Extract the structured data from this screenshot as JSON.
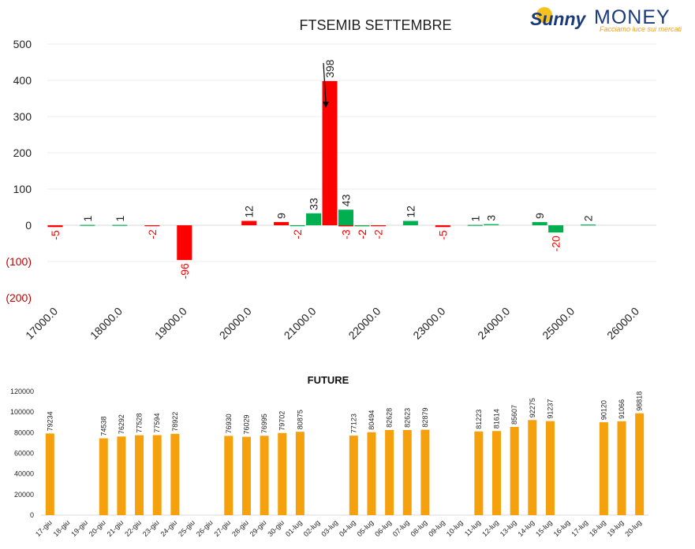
{
  "logo": {
    "word1": "Sunny",
    "word2": "MONEY",
    "tagline": "Facciamo luce sui mercati"
  },
  "colors": {
    "positive": "#00b050",
    "negative": "#ff0000",
    "future_bar": "#f5a00d",
    "logo_blue": "#1b3a7a",
    "logo_orange": "#f39c12",
    "grid": "#eeeeee",
    "negative_tick": "#c00000"
  },
  "chart_data": [
    {
      "type": "bar",
      "title": "FTSEMIB SETTEMBRE",
      "xlabel": "",
      "ylabel": "",
      "ylim": [
        -200,
        500
      ],
      "y_ticks": [
        "500",
        "400",
        "300",
        "200",
        "100",
        "0",
        "(100)",
        "(200)"
      ],
      "x_tick_labels": [
        "17000.0",
        "18000.0",
        "19000.0",
        "20000.0",
        "21000.0",
        "22000.0",
        "23000.0",
        "24000.0",
        "25000.0",
        "26000.0"
      ],
      "x": [
        17000,
        17250,
        17500,
        17750,
        18000,
        18250,
        18500,
        18750,
        19000,
        19250,
        19500,
        19750,
        20000,
        20250,
        20500,
        20750,
        21000,
        21250,
        21500,
        21750,
        22000,
        22250,
        22500,
        22750,
        23000,
        23250,
        23500,
        23750,
        24000,
        24250,
        24500,
        24750,
        25000,
        25250,
        25500,
        25750,
        26000
      ],
      "series": [
        {
          "name": "",
          "color": "negative",
          "x": [
            17000,
            18500,
            19000,
            20000,
            20500,
            21250,
            21500,
            21750,
            22000,
            23000
          ],
          "values": [
            -5,
            -2,
            -96,
            12,
            9,
            398,
            -3,
            -2,
            -2,
            -5
          ],
          "labels": [
            "-5",
            "-2",
            "-96",
            "12",
            "9",
            "398",
            "-3",
            "-2",
            "-2",
            "-5"
          ]
        },
        {
          "name": "",
          "color": "positive",
          "x": [
            17500,
            18000,
            20750,
            21000,
            21500,
            21750,
            22500,
            23500,
            23750,
            24500,
            24750,
            25250
          ],
          "values": [
            1,
            1,
            -2,
            33,
            43,
            -2,
            12,
            1,
            3,
            9,
            -20,
            2
          ],
          "labels": [
            "1",
            "1",
            "-2",
            "33",
            "43",
            "-2",
            "12",
            "1",
            "3",
            "9",
            "-20",
            "2"
          ]
        }
      ],
      "annotation": "arrow pointing down next to the 21250 bar"
    },
    {
      "type": "bar",
      "title": "FUTURE",
      "xlabel": "",
      "ylabel": "",
      "ylim": [
        0,
        120000
      ],
      "y_ticks": [
        "120000",
        "100000",
        "80000",
        "60000",
        "40000",
        "20000",
        "0"
      ],
      "categories": [
        "17-giu",
        "18-giu",
        "19-giu",
        "20-giu",
        "21-giu",
        "22-giu",
        "23-giu",
        "24-giu",
        "25-giu",
        "26-giu",
        "27-giu",
        "28-giu",
        "29-giu",
        "30-giu",
        "01-lug",
        "02-lug",
        "03-lug",
        "04-lug",
        "05-lug",
        "06-lug",
        "07-lug",
        "08-lug",
        "09-lug",
        "10-lug",
        "11-lug",
        "12-lug",
        "13-lug",
        "14-lug",
        "15-lug",
        "16-lug",
        "17-lug",
        "18-lug",
        "19-lug",
        "20-lug"
      ],
      "values": [
        79234,
        null,
        null,
        74538,
        76292,
        77528,
        77594,
        78922,
        null,
        null,
        76930,
        76029,
        76995,
        79702,
        80875,
        null,
        null,
        77123,
        80494,
        82628,
        82623,
        82879,
        null,
        null,
        81223,
        81614,
        85607,
        92275,
        91237,
        null,
        null,
        90120,
        91066,
        98818
      ],
      "labels": [
        "79234",
        "",
        "",
        "74538",
        "76292",
        "77528",
        "77594",
        "78922",
        "",
        "",
        "76930",
        "76029",
        "76995",
        "79702",
        "80875",
        "",
        "",
        "77123",
        "80494",
        "82628",
        "82623",
        "82879",
        "",
        "",
        "81223",
        "81614",
        "85607",
        "92275",
        "91237",
        "",
        "",
        "90120",
        "91066",
        "98818"
      ]
    }
  ]
}
